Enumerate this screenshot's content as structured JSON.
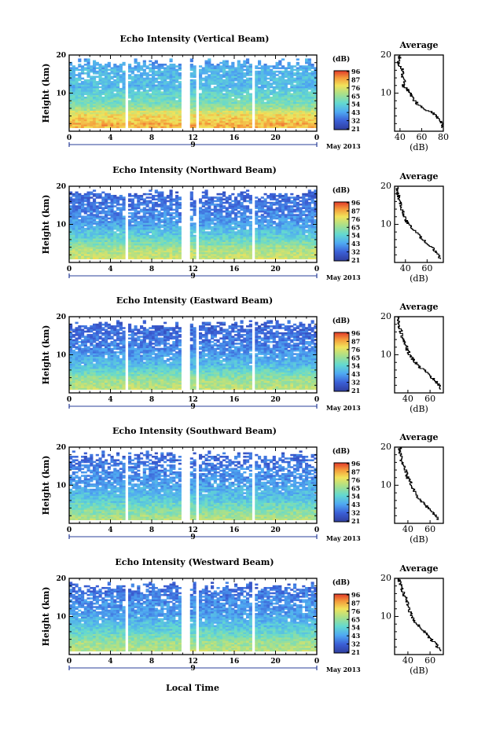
{
  "figure": {
    "xlabel": "Local Time",
    "month_label": "May 2013",
    "date_label": "9",
    "height_label": "Height (km)",
    "colorbar_unit": "(dB)",
    "colorbar_ticks": [
      "96",
      "87",
      "76",
      "65",
      "54",
      "43",
      "32",
      "21"
    ],
    "average_title": "Average",
    "average_xlabel": "(dB)"
  },
  "chart_data": [
    {
      "type": "heatmap",
      "title": "Echo Intensity (Vertical Beam)",
      "xlabel": "Local Time",
      "ylabel": "Height (km)",
      "xlim": [
        0,
        24
      ],
      "ylim": [
        0,
        20
      ],
      "x_ticks": [
        "0",
        "4",
        "8",
        "12",
        "16",
        "20",
        "0"
      ],
      "y_ticks": [
        "10",
        "20"
      ],
      "date_label": "9",
      "month_label": "May 2013",
      "colorbar": {
        "label": "(dB)",
        "ticks": [
          96,
          87,
          76,
          65,
          54,
          43,
          32,
          21
        ]
      },
      "data_gaps_hours": [
        [
          5.5,
          5.75
        ],
        [
          11.0,
          11.8
        ],
        [
          12.2,
          12.5
        ],
        [
          17.6,
          17.9
        ]
      ],
      "average_profile": {
        "title": "Average",
        "xlabel": "(dB)",
        "xlim": [
          35,
          80
        ],
        "x_ticks": [
          40,
          60,
          80
        ],
        "y_ticks": [
          10,
          20
        ],
        "height_km": [
          1,
          2,
          3,
          4,
          5,
          6,
          7,
          8,
          9,
          10,
          11,
          12,
          13,
          14,
          15,
          16,
          17,
          18,
          19,
          20
        ],
        "intensity_db": [
          78,
          80,
          76,
          74,
          70,
          62,
          57,
          54,
          51,
          50,
          47,
          43,
          44,
          43,
          42,
          43,
          40,
          38,
          39,
          40
        ]
      }
    },
    {
      "type": "heatmap",
      "title": "Echo Intensity (Northward Beam)",
      "xlabel": "Local Time",
      "ylabel": "Height (km)",
      "xlim": [
        0,
        24
      ],
      "ylim": [
        0,
        20
      ],
      "x_ticks": [
        "0",
        "4",
        "8",
        "12",
        "16",
        "20",
        "0"
      ],
      "y_ticks": [
        "10",
        "20"
      ],
      "date_label": "9",
      "month_label": "May 2013",
      "colorbar": {
        "label": "(dB)",
        "ticks": [
          96,
          87,
          76,
          65,
          54,
          43,
          32,
          21
        ]
      },
      "data_gaps_hours": [
        [
          5.5,
          5.75
        ],
        [
          11.0,
          11.8
        ],
        [
          12.2,
          12.5
        ],
        [
          17.6,
          17.9
        ]
      ],
      "average_profile": {
        "title": "Average",
        "xlabel": "(dB)",
        "xlim": [
          30,
          75
        ],
        "x_ticks": [
          40,
          60
        ],
        "y_ticks": [
          10,
          20
        ],
        "height_km": [
          1,
          2,
          3,
          4,
          5,
          6,
          7,
          8,
          9,
          10,
          11,
          12,
          13,
          14,
          15,
          16,
          17,
          18,
          19,
          20
        ],
        "intensity_db": [
          73,
          70,
          68,
          65,
          60,
          57,
          53,
          50,
          46,
          43,
          41,
          40,
          38,
          37,
          36,
          35,
          34,
          33,
          32,
          33
        ]
      }
    },
    {
      "type": "heatmap",
      "title": "Echo Intensity (Eastward Beam)",
      "xlabel": "Local Time",
      "ylabel": "Height (km)",
      "xlim": [
        0,
        24
      ],
      "ylim": [
        0,
        20
      ],
      "x_ticks": [
        "0",
        "4",
        "8",
        "12",
        "16",
        "20",
        "0"
      ],
      "y_ticks": [
        "10",
        "20"
      ],
      "date_label": "9",
      "month_label": "May 2013",
      "colorbar": {
        "label": "(dB)",
        "ticks": [
          96,
          87,
          76,
          65,
          54,
          43,
          32,
          21
        ]
      },
      "data_gaps_hours": [
        [
          5.5,
          5.75
        ],
        [
          11.0,
          11.8
        ],
        [
          12.2,
          12.5
        ],
        [
          17.6,
          17.9
        ]
      ],
      "average_profile": {
        "title": "Average",
        "xlabel": "(dB)",
        "xlim": [
          28,
          72
        ],
        "x_ticks": [
          40,
          60
        ],
        "y_ticks": [
          10,
          20
        ],
        "height_km": [
          1,
          2,
          3,
          4,
          5,
          6,
          7,
          8,
          9,
          10,
          11,
          12,
          13,
          14,
          15,
          16,
          17,
          18,
          19,
          20
        ],
        "intensity_db": [
          70,
          68,
          66,
          62,
          58,
          55,
          50,
          47,
          44,
          42,
          40,
          39,
          37,
          36,
          35,
          34,
          33,
          32,
          32,
          31
        ]
      }
    },
    {
      "type": "heatmap",
      "title": "Echo Intensity (Southward Beam)",
      "xlabel": "Local Time",
      "ylabel": "Height (km)",
      "xlim": [
        0,
        24
      ],
      "ylim": [
        0,
        20
      ],
      "x_ticks": [
        "0",
        "4",
        "8",
        "12",
        "16",
        "20",
        "0"
      ],
      "y_ticks": [
        "10",
        "20"
      ],
      "date_label": "9",
      "month_label": "May 2013",
      "colorbar": {
        "label": "(dB)",
        "ticks": [
          96,
          87,
          76,
          65,
          54,
          43,
          32,
          21
        ]
      },
      "data_gaps_hours": [
        [
          5.5,
          5.75
        ],
        [
          11.0,
          11.8
        ],
        [
          12.2,
          12.5
        ],
        [
          17.6,
          17.9
        ]
      ],
      "average_profile": {
        "title": "Average",
        "xlabel": "(dB)",
        "xlim": [
          28,
          72
        ],
        "x_ticks": [
          40,
          60
        ],
        "y_ticks": [
          10,
          20
        ],
        "height_km": [
          1,
          2,
          3,
          4,
          5,
          6,
          7,
          8,
          9,
          10,
          11,
          12,
          13,
          14,
          15,
          16,
          17,
          18,
          19,
          20
        ],
        "intensity_db": [
          68,
          66,
          62,
          58,
          56,
          52,
          49,
          47,
          45,
          43,
          42,
          40,
          39,
          38,
          36,
          35,
          34,
          33,
          32,
          33
        ]
      }
    },
    {
      "type": "heatmap",
      "title": "Echo Intensity (Westward Beam)",
      "xlabel": "Local Time",
      "ylabel": "Height (km)",
      "xlim": [
        0,
        24
      ],
      "ylim": [
        0,
        20
      ],
      "x_ticks": [
        "0",
        "4",
        "8",
        "12",
        "16",
        "20",
        "0"
      ],
      "y_ticks": [
        "10",
        "20"
      ],
      "date_label": "9",
      "month_label": "May 2013",
      "colorbar": {
        "label": "(dB)",
        "ticks": [
          96,
          87,
          76,
          65,
          54,
          43,
          32,
          21
        ]
      },
      "data_gaps_hours": [
        [
          5.5,
          5.75
        ],
        [
          11.0,
          11.8
        ],
        [
          12.2,
          12.5
        ],
        [
          17.6,
          17.9
        ]
      ],
      "average_profile": {
        "title": "Average",
        "xlabel": "(dB)",
        "xlim": [
          28,
          72
        ],
        "x_ticks": [
          40,
          60
        ],
        "y_ticks": [
          10,
          20
        ],
        "height_km": [
          1,
          2,
          3,
          4,
          5,
          6,
          7,
          8,
          9,
          10,
          11,
          12,
          13,
          14,
          15,
          16,
          17,
          18,
          19,
          20
        ],
        "intensity_db": [
          69,
          67,
          65,
          61,
          58,
          55,
          52,
          49,
          46,
          44,
          42,
          41,
          40,
          39,
          38,
          36,
          35,
          34,
          33,
          32
        ]
      }
    }
  ]
}
